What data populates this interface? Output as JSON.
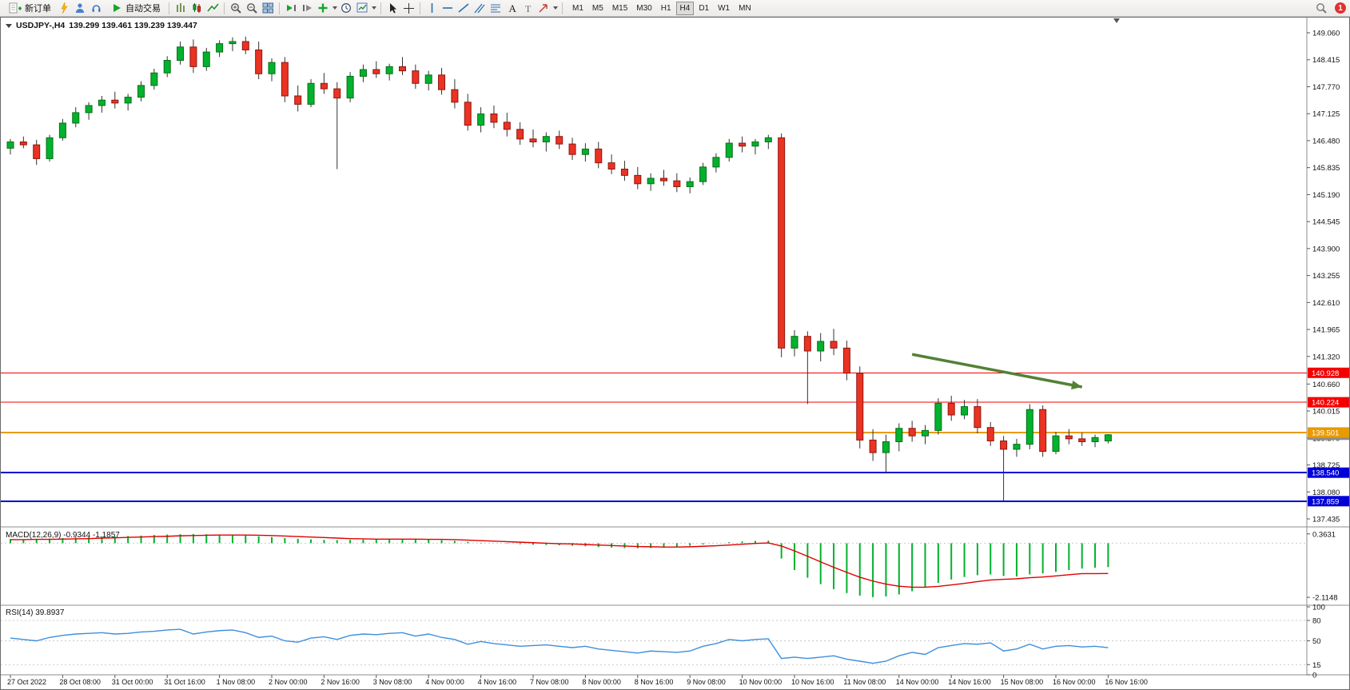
{
  "toolbar": {
    "new_order_label": "新订单",
    "autotrading_label": "自动交易",
    "timeframes": [
      "M1",
      "M5",
      "M15",
      "M30",
      "H1",
      "H4",
      "D1",
      "W1",
      "MN"
    ],
    "active_timeframe": "H4",
    "alert_count": "1"
  },
  "chart": {
    "title": "USDJPY-,H4",
    "ohlc": "139.299 139.461 139.239 139.447",
    "macd_label": "MACD(12,26,9)",
    "macd_values": "-0.9344 -1.1857",
    "rsi_label": "RSI(14)",
    "rsi_value": "39.8937"
  },
  "chart_data": {
    "type": "candlestick",
    "symbol": "USDJPY-",
    "period": "H4",
    "title": "USDJPY-,H4",
    "current_bar": {
      "open": 139.299,
      "high": 139.461,
      "low": 139.239,
      "close": 139.447
    },
    "ylim": [
      137.3,
      149.4
    ],
    "grid": false,
    "colors": {
      "up": "#00b22d",
      "up_border": "#066f16",
      "down": "#ea3323",
      "down_border": "#8f160e",
      "wick": "#333333",
      "bg": "#ffffff"
    },
    "price_ticks": [
      "149.060",
      "148.415",
      "147.770",
      "147.125",
      "146.480",
      "145.835",
      "145.190",
      "144.545",
      "143.900",
      "143.255",
      "142.610",
      "141.965",
      "141.320",
      "140.660",
      "140.015",
      "139.370",
      "138.725",
      "138.080",
      "137.435"
    ],
    "levels": [
      {
        "price": 140.928,
        "label": "140.928",
        "color": "#f40000",
        "width": 1,
        "line": true
      },
      {
        "price": 140.224,
        "label": "140.224",
        "color": "#f40000",
        "width": 1,
        "line": true
      },
      {
        "price": 139.447,
        "label": "139.447",
        "color": "#8c8c8c",
        "width": 1,
        "line": false
      },
      {
        "price": 139.501,
        "label": "139.501",
        "color": "#e89b00",
        "width": 2,
        "line": true
      },
      {
        "price": 138.54,
        "label": "138.540",
        "color": "#0000d8",
        "width": 2,
        "line": true
      },
      {
        "price": 137.859,
        "label": "137.859",
        "color": "#0000d8",
        "width": 2,
        "line": true
      }
    ],
    "arrow": {
      "from_bar": 69,
      "from_price": 141.37,
      "to_bar": 82,
      "to_price": 140.59,
      "color": "#538135"
    },
    "time_labels": [
      {
        "bar": 0,
        "text": "27 Oct 2022"
      },
      {
        "bar": 4,
        "text": "28 Oct 08:00"
      },
      {
        "bar": 8,
        "text": "31 Oct 00:00"
      },
      {
        "bar": 12,
        "text": "31 Oct 16:00"
      },
      {
        "bar": 16,
        "text": "1 Nov 08:00"
      },
      {
        "bar": 20,
        "text": "2 Nov 00:00"
      },
      {
        "bar": 24,
        "text": "2 Nov 16:00"
      },
      {
        "bar": 28,
        "text": "3 Nov 08:00"
      },
      {
        "bar": 32,
        "text": "4 Nov 00:00"
      },
      {
        "bar": 36,
        "text": "4 Nov 16:00"
      },
      {
        "bar": 40,
        "text": "7 Nov 08:00"
      },
      {
        "bar": 44,
        "text": "8 Nov 00:00"
      },
      {
        "bar": 48,
        "text": "8 Nov 16:00"
      },
      {
        "bar": 52,
        "text": "9 Nov 08:00"
      },
      {
        "bar": 56,
        "text": "10 Nov 00:00"
      },
      {
        "bar": 60,
        "text": "10 Nov 16:00"
      },
      {
        "bar": 64,
        "text": "11 Nov 08:00"
      },
      {
        "bar": 68,
        "text": "14 Nov 00:00"
      },
      {
        "bar": 72,
        "text": "14 Nov 16:00"
      },
      {
        "bar": 76,
        "text": "15 Nov 08:00"
      },
      {
        "bar": 80,
        "text": "16 Nov 00:00"
      },
      {
        "bar": 84,
        "text": "16 Nov 16:00"
      }
    ],
    "candles": [
      [
        146.3,
        146.52,
        146.15,
        146.45
      ],
      [
        146.45,
        146.58,
        146.3,
        146.38
      ],
      [
        146.38,
        146.5,
        145.9,
        146.05
      ],
      [
        146.05,
        146.62,
        145.98,
        146.55
      ],
      [
        146.55,
        147.0,
        146.48,
        146.9
      ],
      [
        146.9,
        147.28,
        146.8,
        147.15
      ],
      [
        147.15,
        147.4,
        146.98,
        147.32
      ],
      [
        147.32,
        147.55,
        147.15,
        147.45
      ],
      [
        147.45,
        147.65,
        147.25,
        147.38
      ],
      [
        147.38,
        147.6,
        147.2,
        147.52
      ],
      [
        147.52,
        147.9,
        147.42,
        147.8
      ],
      [
        147.8,
        148.2,
        147.7,
        148.1
      ],
      [
        148.1,
        148.5,
        148.0,
        148.4
      ],
      [
        148.4,
        148.85,
        148.3,
        148.72
      ],
      [
        148.72,
        148.9,
        148.1,
        148.25
      ],
      [
        148.25,
        148.7,
        148.15,
        148.6
      ],
      [
        148.6,
        148.88,
        148.48,
        148.8
      ],
      [
        148.8,
        148.95,
        148.62,
        148.85
      ],
      [
        148.85,
        148.97,
        148.55,
        148.65
      ],
      [
        148.65,
        148.85,
        147.95,
        148.08
      ],
      [
        148.08,
        148.45,
        147.9,
        148.35
      ],
      [
        148.35,
        148.48,
        147.4,
        147.55
      ],
      [
        147.55,
        147.8,
        147.18,
        147.35
      ],
      [
        147.35,
        147.95,
        147.28,
        147.85
      ],
      [
        147.85,
        148.1,
        147.6,
        147.72
      ],
      [
        147.72,
        147.88,
        145.8,
        147.5
      ],
      [
        147.5,
        148.12,
        147.4,
        148.02
      ],
      [
        148.02,
        148.3,
        147.88,
        148.18
      ],
      [
        148.18,
        148.38,
        147.98,
        148.08
      ],
      [
        148.08,
        148.32,
        147.92,
        148.25
      ],
      [
        148.25,
        148.48,
        148.05,
        148.15
      ],
      [
        148.15,
        148.3,
        147.72,
        147.85
      ],
      [
        147.85,
        148.15,
        147.68,
        148.05
      ],
      [
        148.05,
        148.22,
        147.58,
        147.7
      ],
      [
        147.7,
        147.95,
        147.25,
        147.4
      ],
      [
        147.4,
        147.6,
        146.72,
        146.85
      ],
      [
        146.85,
        147.28,
        146.68,
        147.12
      ],
      [
        147.12,
        147.32,
        146.78,
        146.92
      ],
      [
        146.92,
        147.15,
        146.58,
        146.75
      ],
      [
        146.75,
        146.92,
        146.38,
        146.52
      ],
      [
        146.52,
        146.75,
        146.32,
        146.45
      ],
      [
        146.45,
        146.68,
        146.22,
        146.58
      ],
      [
        146.58,
        146.72,
        146.28,
        146.4
      ],
      [
        146.4,
        146.55,
        146.02,
        146.15
      ],
      [
        146.15,
        146.42,
        145.98,
        146.28
      ],
      [
        146.28,
        146.45,
        145.82,
        145.95
      ],
      [
        145.95,
        146.15,
        145.68,
        145.8
      ],
      [
        145.8,
        146.0,
        145.52,
        145.65
      ],
      [
        145.65,
        145.85,
        145.32,
        145.45
      ],
      [
        145.45,
        145.7,
        145.28,
        145.58
      ],
      [
        145.58,
        145.78,
        145.4,
        145.52
      ],
      [
        145.52,
        145.7,
        145.25,
        145.38
      ],
      [
        145.38,
        145.6,
        145.22,
        145.5
      ],
      [
        145.5,
        145.95,
        145.42,
        145.85
      ],
      [
        145.85,
        146.18,
        145.72,
        146.08
      ],
      [
        146.08,
        146.52,
        145.98,
        146.42
      ],
      [
        146.42,
        146.58,
        146.2,
        146.35
      ],
      [
        146.35,
        146.52,
        146.15,
        146.45
      ],
      [
        146.45,
        146.62,
        146.28,
        146.55
      ],
      [
        146.55,
        146.65,
        141.3,
        141.52
      ],
      [
        141.52,
        141.95,
        141.32,
        141.8
      ],
      [
        141.8,
        141.92,
        140.18,
        141.45
      ],
      [
        141.45,
        141.88,
        141.2,
        141.68
      ],
      [
        141.68,
        141.98,
        141.35,
        141.52
      ],
      [
        141.52,
        141.7,
        140.75,
        140.92
      ],
      [
        140.92,
        141.08,
        139.12,
        139.32
      ],
      [
        139.32,
        139.58,
        138.82,
        139.02
      ],
      [
        139.02,
        139.45,
        138.52,
        139.28
      ],
      [
        139.28,
        139.72,
        139.05,
        139.6
      ],
      [
        139.6,
        139.78,
        139.28,
        139.42
      ],
      [
        139.42,
        139.68,
        139.22,
        139.55
      ],
      [
        139.55,
        140.32,
        139.45,
        140.2
      ],
      [
        140.2,
        140.38,
        139.78,
        139.92
      ],
      [
        139.92,
        140.28,
        139.82,
        140.12
      ],
      [
        140.12,
        140.3,
        139.48,
        139.62
      ],
      [
        139.62,
        139.75,
        139.18,
        139.3
      ],
      [
        139.3,
        139.42,
        137.86,
        139.1
      ],
      [
        139.1,
        139.35,
        138.92,
        139.22
      ],
      [
        139.22,
        140.18,
        139.1,
        140.05
      ],
      [
        140.05,
        140.15,
        138.92,
        139.05
      ],
      [
        139.05,
        139.52,
        138.98,
        139.42
      ],
      [
        139.42,
        139.58,
        139.22,
        139.35
      ],
      [
        139.35,
        139.5,
        139.18,
        139.28
      ],
      [
        139.28,
        139.45,
        139.15,
        139.38
      ],
      [
        139.299,
        139.461,
        139.239,
        139.447
      ]
    ],
    "macd": {
      "label": "MACD(12,26,9)",
      "value_main": -0.9344,
      "value_signal": -1.1857,
      "colors": {
        "histogram": "#00b22d",
        "signal": "#e00000"
      },
      "scale": [
        {
          "v": 0.3631,
          "text": "0.3631"
        },
        {
          "v": -2.1148,
          "text": "-2.1148"
        }
      ],
      "histogram": [
        0.16,
        0.15,
        0.16,
        0.18,
        0.2,
        0.22,
        0.24,
        0.25,
        0.26,
        0.28,
        0.3,
        0.32,
        0.34,
        0.35,
        0.36,
        0.35,
        0.33,
        0.32,
        0.3,
        0.27,
        0.24,
        0.2,
        0.17,
        0.15,
        0.13,
        0.12,
        0.13,
        0.14,
        0.15,
        0.16,
        0.16,
        0.15,
        0.14,
        0.12,
        0.09,
        0.05,
        0.02,
        0.0,
        -0.02,
        -0.04,
        -0.06,
        -0.07,
        -0.08,
        -0.1,
        -0.12,
        -0.15,
        -0.17,
        -0.19,
        -0.2,
        -0.19,
        -0.17,
        -0.14,
        -0.1,
        -0.05,
        0.0,
        0.04,
        0.07,
        0.09,
        0.1,
        -0.6,
        -1.05,
        -1.35,
        -1.6,
        -1.8,
        -1.95,
        -2.05,
        -2.11,
        -2.08,
        -2.0,
        -1.88,
        -1.72,
        -1.55,
        -1.42,
        -1.32,
        -1.25,
        -1.22,
        -1.28,
        -1.3,
        -1.22,
        -1.18,
        -1.12,
        -1.05,
        -0.99,
        -0.96,
        -0.9344
      ],
      "signal": [
        0.14,
        0.14,
        0.15,
        0.15,
        0.16,
        0.17,
        0.18,
        0.2,
        0.21,
        0.23,
        0.24,
        0.26,
        0.27,
        0.29,
        0.3,
        0.31,
        0.32,
        0.32,
        0.32,
        0.31,
        0.3,
        0.28,
        0.26,
        0.24,
        0.22,
        0.2,
        0.18,
        0.17,
        0.16,
        0.16,
        0.16,
        0.16,
        0.15,
        0.15,
        0.14,
        0.12,
        0.1,
        0.08,
        0.06,
        0.04,
        0.02,
        0.0,
        -0.02,
        -0.03,
        -0.05,
        -0.07,
        -0.09,
        -0.11,
        -0.13,
        -0.14,
        -0.15,
        -0.15,
        -0.14,
        -0.12,
        -0.1,
        -0.07,
        -0.04,
        -0.01,
        0.01,
        -0.11,
        -0.3,
        -0.51,
        -0.73,
        -0.94,
        -1.14,
        -1.33,
        -1.48,
        -1.6,
        -1.68,
        -1.72,
        -1.72,
        -1.69,
        -1.63,
        -1.57,
        -1.5,
        -1.44,
        -1.41,
        -1.39,
        -1.35,
        -1.32,
        -1.28,
        -1.23,
        -1.19,
        -1.19,
        -1.1857
      ]
    },
    "rsi": {
      "label": "RSI(14)",
      "value": 39.8937,
      "color": "#3e8ede",
      "levels": [
        80,
        50,
        15
      ],
      "scale": [
        {
          "v": 100,
          "text": "100"
        },
        {
          "v": 80,
          "text": "80"
        },
        {
          "v": 50,
          "text": "50"
        },
        {
          "v": 15,
          "text": "15"
        },
        {
          "v": 0,
          "text": "0"
        }
      ],
      "values": [
        54,
        52,
        50,
        55,
        58,
        60,
        61,
        62,
        60,
        61,
        63,
        64,
        66,
        67,
        60,
        63,
        65,
        66,
        62,
        55,
        57,
        50,
        48,
        54,
        56,
        52,
        58,
        60,
        59,
        61,
        62,
        57,
        60,
        55,
        52,
        45,
        49,
        46,
        44,
        42,
        43,
        44,
        42,
        40,
        42,
        38,
        36,
        34,
        32,
        35,
        34,
        33,
        35,
        42,
        46,
        52,
        50,
        52,
        53,
        24,
        26,
        24,
        26,
        28,
        23,
        20,
        17,
        20,
        28,
        33,
        30,
        40,
        43,
        46,
        45,
        47,
        35,
        38,
        45,
        38,
        42,
        43,
        41,
        42,
        39.89
      ]
    }
  }
}
